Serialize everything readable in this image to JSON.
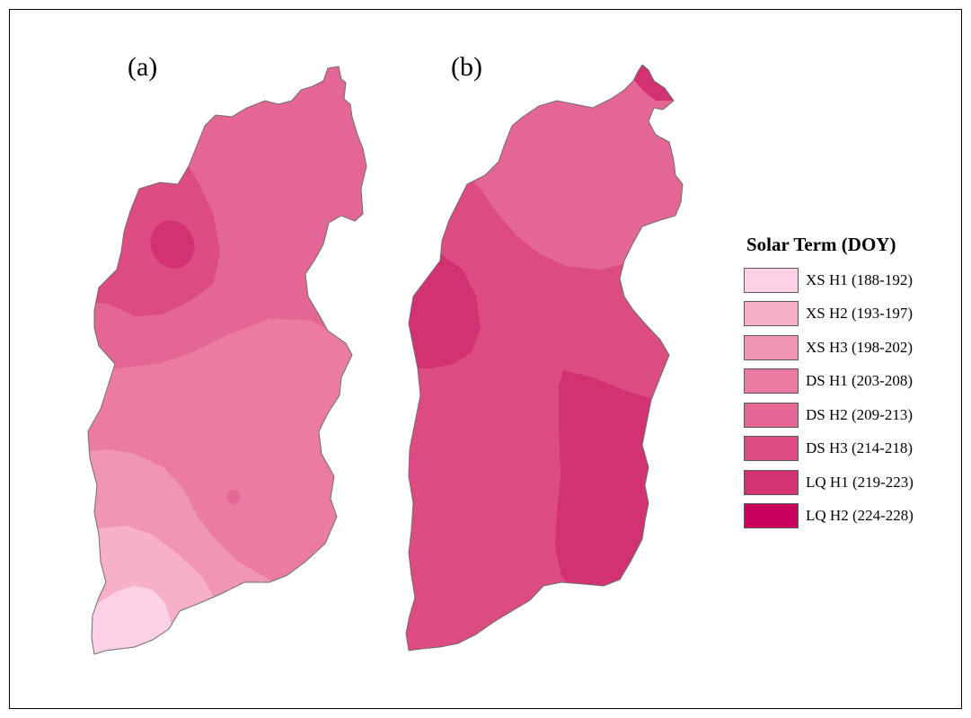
{
  "panels": [
    {
      "label": "(a)"
    },
    {
      "label": "(b)"
    }
  ],
  "legend": {
    "title": "Solar Term (DOY)",
    "items": [
      {
        "label": "XS H1 (188-192)",
        "color": "#fdd0e3"
      },
      {
        "label": "XS H2 (193-197)",
        "color": "#f7b0ca"
      },
      {
        "label": "XS H3 (198-202)",
        "color": "#f195b6"
      },
      {
        "label": "DS H1 (203-208)",
        "color": "#eb7ba3"
      },
      {
        "label": "DS H2 (209-213)",
        "color": "#e46694"
      },
      {
        "label": "DS H3 (214-218)",
        "color": "#dc4c80"
      },
      {
        "label": "LQ H1 (219-223)",
        "color": "#d23272"
      },
      {
        "label": "LQ H2 (224-228)",
        "color": "#c8005e"
      }
    ]
  }
}
